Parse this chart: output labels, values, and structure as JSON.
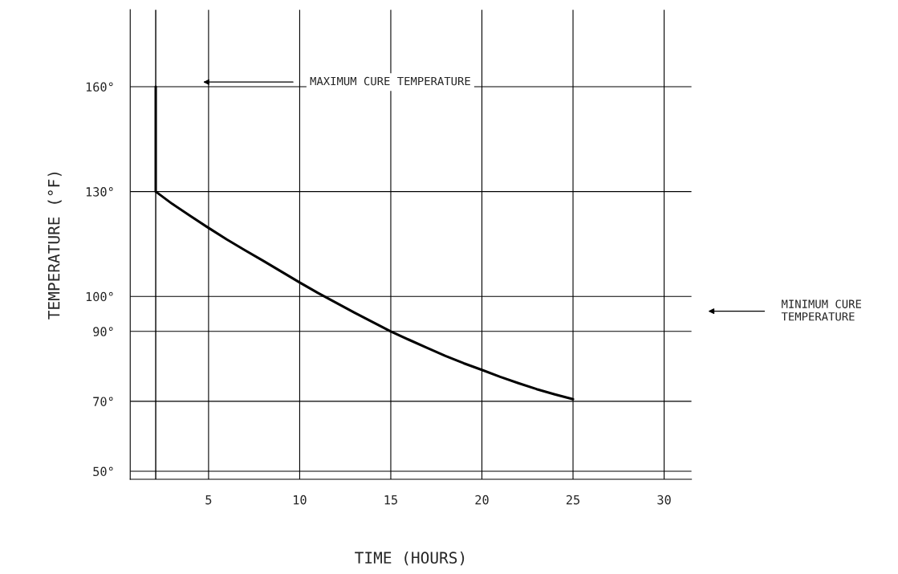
{
  "chart_data": {
    "type": "line",
    "xlabel": "TIME (HOURS)",
    "ylabel": "TEMPERATURE (°F)",
    "x": [
      2.1,
      2.1,
      3,
      4,
      5,
      6,
      7,
      8,
      9,
      10,
      11,
      12,
      13,
      14,
      15,
      16,
      17,
      18,
      19,
      20,
      21,
      22,
      23,
      24,
      25
    ],
    "series": [
      {
        "color": "#000000",
        "values": [
          160,
          130,
          126.5,
          123,
          119.6,
          116.3,
          113.2,
          110.2,
          107.1,
          104,
          101,
          98.2,
          95.4,
          92.7,
          90,
          87.6,
          85.3,
          83,
          80.9,
          79,
          77,
          75.2,
          73.5,
          72,
          70.6
        ]
      }
    ],
    "xlim": [
      0.7,
      31.5
    ],
    "ylim": [
      47.7,
      182
    ],
    "xticks": [
      5,
      10,
      15,
      20,
      25,
      30
    ],
    "yticks": [
      {
        "value": 50,
        "label": "50°"
      },
      {
        "value": 70,
        "label": "70°"
      },
      {
        "value": 90,
        "label": "90°"
      },
      {
        "value": 100,
        "label": "100°"
      },
      {
        "value": 130,
        "label": "130°"
      },
      {
        "value": 160,
        "label": "160°"
      }
    ],
    "grid": true,
    "marker": "none",
    "line_style": "solid",
    "ref_lines": [
      {
        "axis": "x",
        "value": 2.1,
        "color": "#000000"
      }
    ],
    "annotations": [
      "MAXIMUM CURE TEMPERATURE",
      "MINIMUM CURE\nTEMPERATURE"
    ]
  }
}
